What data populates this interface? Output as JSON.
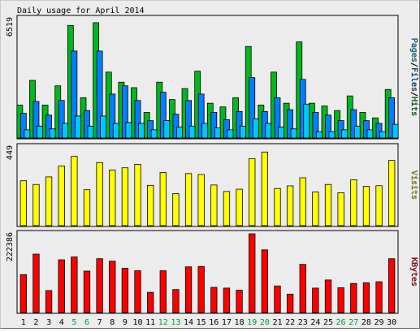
{
  "chart_data": {
    "type": "bar",
    "title": "Daily usage for April 2014",
    "categories": [
      "1",
      "2",
      "3",
      "4",
      "5",
      "6",
      "7",
      "8",
      "9",
      "10",
      "11",
      "12",
      "13",
      "14",
      "15",
      "16",
      "17",
      "18",
      "19",
      "20",
      "21",
      "22",
      "23",
      "24",
      "25",
      "26",
      "27",
      "28",
      "29",
      "30"
    ],
    "weekend_days": [
      "5",
      "6",
      "12",
      "13",
      "19",
      "20",
      "26",
      "27"
    ],
    "colors": {
      "hits": "#00b820",
      "files": "#0080ff",
      "pages": "#00c8ff",
      "visits": "#ffff00",
      "kbytes": "#ff0000",
      "weekday_label": "#000000",
      "weekend_label": "#00a030"
    },
    "panels": [
      {
        "name": "Pages/Files/Hits",
        "label_parts": [
          {
            "text": "Pages",
            "color": "#00c8ff"
          },
          {
            "text": "/",
            "color": "#000000"
          },
          {
            "text": "Files",
            "color": "#0080ff"
          },
          {
            "text": "/",
            "color": "#000000"
          },
          {
            "text": "Hits",
            "color": "#00b820"
          }
        ],
        "ymax_label": "6519",
        "ylim": [
          0,
          6519
        ],
        "series": [
          {
            "name": "Hits",
            "color": "#00b820",
            "values": [
              1800,
              3150,
              1800,
              2850,
              6150,
              2200,
              6300,
              3600,
              3050,
              2750,
              1400,
              3050,
              2100,
              2700,
              3650,
              1900,
              1700,
              2200,
              5000,
              1800,
              3600,
              1900,
              5250,
              1900,
              1750,
              1500,
              2300,
              1400,
              1100,
              2650
            ]
          },
          {
            "name": "Files",
            "color": "#0080ff",
            "values": [
              1350,
              2000,
              1250,
              2050,
              4750,
              1500,
              4750,
              2400,
              2850,
              2050,
              950,
              2500,
              1300,
              2050,
              2400,
              1400,
              1000,
              1450,
              3300,
              1450,
              2200,
              1550,
              3200,
              1400,
              1250,
              950,
              1550,
              950,
              800,
              2200
            ]
          },
          {
            "name": "Pages",
            "color": "#00c8ff",
            "values": [
              450,
              650,
              500,
              800,
              1200,
              650,
              1200,
              800,
              850,
              800,
              450,
              950,
              600,
              650,
              800,
              550,
              450,
              650,
              1050,
              800,
              600,
              500,
              1850,
              350,
              350,
              450,
              650,
              450,
              350,
              750
            ]
          }
        ]
      },
      {
        "name": "Visits",
        "label_parts": [
          {
            "text": "Visits",
            "color": "#ffff00"
          }
        ],
        "ymax_label": "449",
        "ylim": [
          0,
          449
        ],
        "series": [
          {
            "name": "Visits",
            "color": "#ffff00",
            "values": [
              256,
              235,
              278,
              340,
              395,
              205,
              360,
              317,
              330,
              350,
              230,
              303,
              183,
              297,
              292,
              232,
              195,
              208,
              382,
              420,
              212,
              227,
              273,
              192,
              235,
              188,
              262,
              224,
              228,
              372
            ]
          }
        ]
      },
      {
        "name": "KBytes",
        "label_parts": [
          {
            "text": "KBytes",
            "color": "#ff0000"
          }
        ],
        "ymax_label": "222386",
        "ylim": [
          0,
          222386
        ],
        "series": [
          {
            "name": "KBytes",
            "color": "#ff0000",
            "values": [
              107000,
              165000,
              62000,
              149000,
              157000,
              117000,
              152000,
              145000,
              125000,
              118000,
              57000,
              118000,
              65000,
              129000,
              130000,
              71000,
              69000,
              63000,
              222386,
              177000,
              75000,
              52000,
              136000,
              69000,
              92000,
              70000,
              82000,
              84000,
              87000,
              152000
            ]
          }
        ]
      }
    ]
  }
}
